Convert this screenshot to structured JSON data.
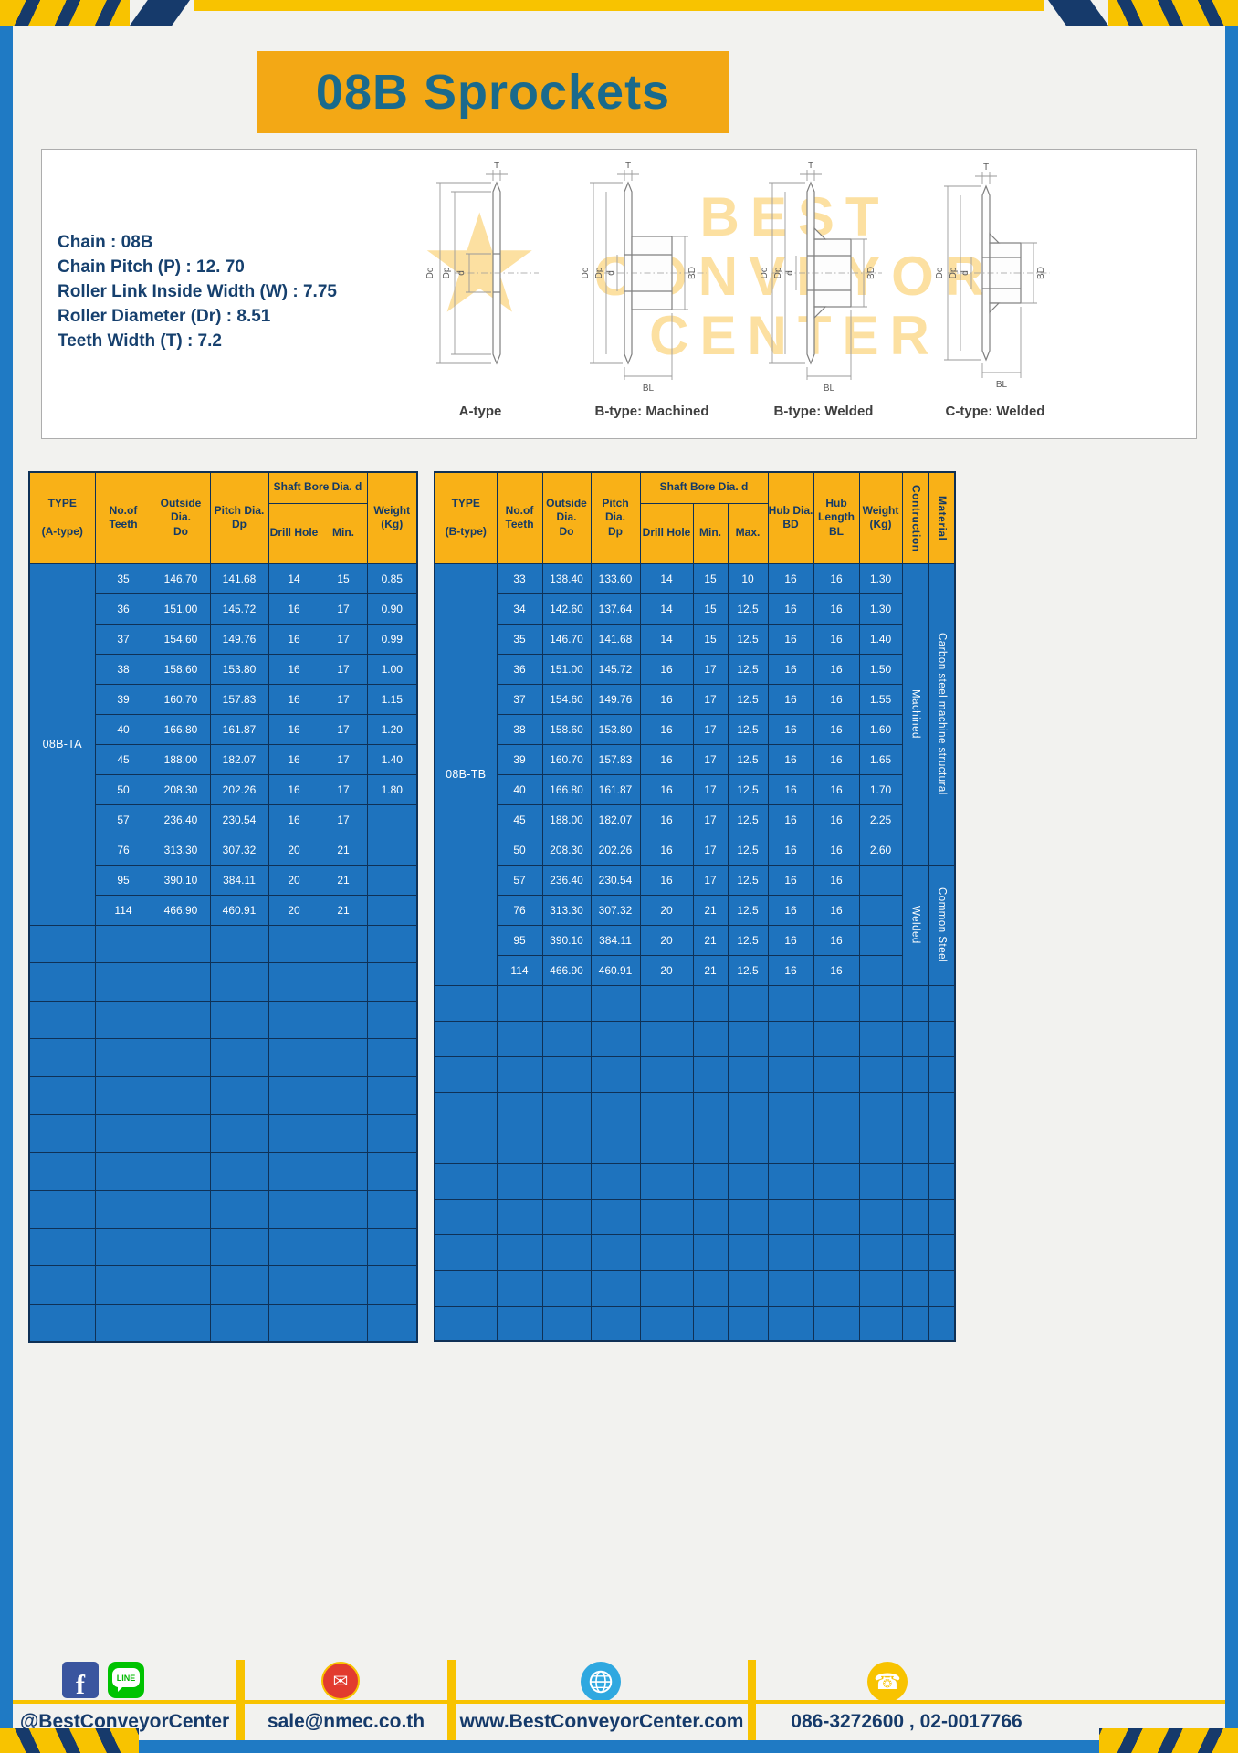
{
  "title": "08B Sprockets",
  "colors": {
    "frame_blue": "#1F7AC4",
    "table_body_blue": "#1E73BE",
    "table_header_gold": "#F9B117",
    "banner_gold": "#F3A815",
    "navy": "#143A66",
    "stripe_yellow": "#F8C300"
  },
  "specs": {
    "lines": [
      "Chain  :  08B",
      "Chain Pitch (P)  :  12. 70",
      "Roller Link Inside Width (W)  :  7.75",
      "Roller Diameter (Dr)  :  8.51",
      "Teeth Width (T)  :  7.2"
    ]
  },
  "diagrams": {
    "watermark": [
      "BEST",
      "CONVEYOR",
      "CENTER"
    ],
    "watermark_star": "★",
    "labels": {
      "t": "T",
      "outer": "Do",
      "pitch": "Dp",
      "bore": "d",
      "hub_dia": "BD",
      "hub_len": "BL"
    },
    "captions": [
      "A-type",
      "B-type: Machined",
      "B-type: Welded",
      "C-type: Welded"
    ]
  },
  "table_a": {
    "headers": {
      "type": "TYPE\n\n(A-type)",
      "teeth": "No.of\nTeeth",
      "outside": "Outside\nDia.\nDo",
      "pitch": "Pitch Dia.\nDp",
      "shaft_group": "Shaft Bore Dia. d",
      "drill": "Drill Hole",
      "min": "Min.",
      "weight": "Weight\n(Kg)"
    },
    "type_value": "08B-TA",
    "rows": [
      [
        "35",
        "146.70",
        "141.68",
        "14",
        "15",
        "0.85"
      ],
      [
        "36",
        "151.00",
        "145.72",
        "16",
        "17",
        "0.90"
      ],
      [
        "37",
        "154.60",
        "149.76",
        "16",
        "17",
        "0.99"
      ],
      [
        "38",
        "158.60",
        "153.80",
        "16",
        "17",
        "1.00"
      ],
      [
        "39",
        "160.70",
        "157.83",
        "16",
        "17",
        "1.15"
      ],
      [
        "40",
        "166.80",
        "161.87",
        "16",
        "17",
        "1.20"
      ],
      [
        "45",
        "188.00",
        "182.07",
        "16",
        "17",
        "1.40"
      ],
      [
        "50",
        "208.30",
        "202.26",
        "16",
        "17",
        "1.80"
      ],
      [
        "57",
        "236.40",
        "230.54",
        "16",
        "17",
        ""
      ],
      [
        "76",
        "313.30",
        "307.32",
        "20",
        "21",
        ""
      ],
      [
        "95",
        "390.10",
        "384.11",
        "20",
        "21",
        ""
      ],
      [
        "114",
        "466.90",
        "460.91",
        "20",
        "21",
        ""
      ]
    ],
    "empty_rows": 11
  },
  "table_b": {
    "headers": {
      "type": "TYPE\n\n(B-type)",
      "teeth": "No.of\nTeeth",
      "outside": "Outside\nDia.\nDo",
      "pitch": "Pitch Dia.\nDp",
      "shaft_group": "Shaft Bore Dia. d",
      "drill": "Drill Hole",
      "min": "Min.",
      "max": "Max.",
      "hub_dia": "Hub Dia.\nBD",
      "hub_len": "Hub\nLength\nBL",
      "weight": "Weight\n(Kg)",
      "construction": "Contruction",
      "material": "Material"
    },
    "type_value": "08B-TB",
    "rows": [
      [
        "33",
        "138.40",
        "133.60",
        "14",
        "15",
        "10",
        "16",
        "16",
        "1.30"
      ],
      [
        "34",
        "142.60",
        "137.64",
        "14",
        "15",
        "12.5",
        "16",
        "16",
        "1.30"
      ],
      [
        "35",
        "146.70",
        "141.68",
        "14",
        "15",
        "12.5",
        "16",
        "16",
        "1.40"
      ],
      [
        "36",
        "151.00",
        "145.72",
        "16",
        "17",
        "12.5",
        "16",
        "16",
        "1.50"
      ],
      [
        "37",
        "154.60",
        "149.76",
        "16",
        "17",
        "12.5",
        "16",
        "16",
        "1.55"
      ],
      [
        "38",
        "158.60",
        "153.80",
        "16",
        "17",
        "12.5",
        "16",
        "16",
        "1.60"
      ],
      [
        "39",
        "160.70",
        "157.83",
        "16",
        "17",
        "12.5",
        "16",
        "16",
        "1.65"
      ],
      [
        "40",
        "166.80",
        "161.87",
        "16",
        "17",
        "12.5",
        "16",
        "16",
        "1.70"
      ],
      [
        "45",
        "188.00",
        "182.07",
        "16",
        "17",
        "12.5",
        "16",
        "16",
        "2.25"
      ],
      [
        "50",
        "208.30",
        "202.26",
        "16",
        "17",
        "12.5",
        "16",
        "16",
        "2.60"
      ],
      [
        "57",
        "236.40",
        "230.54",
        "16",
        "17",
        "12.5",
        "16",
        "16",
        ""
      ],
      [
        "76",
        "313.30",
        "307.32",
        "20",
        "21",
        "12.5",
        "16",
        "16",
        ""
      ],
      [
        "95",
        "390.10",
        "384.11",
        "20",
        "21",
        "12.5",
        "16",
        "16",
        ""
      ],
      [
        "114",
        "466.90",
        "460.91",
        "20",
        "21",
        "12.5",
        "16",
        "16",
        ""
      ]
    ],
    "construction_spans": [
      {
        "label": "Machined",
        "rows": 10
      },
      {
        "label": "Welded",
        "rows": 4
      }
    ],
    "material_spans": [
      {
        "label": "Carbon steel  machine structural",
        "rows": 10
      },
      {
        "label": "Common  Steel",
        "rows": 4
      }
    ],
    "empty_rows": 10
  },
  "footer": {
    "handle": "@BestConveyorCenter",
    "email": "sale@nmec.co.th",
    "website": "www.BestConveyorCenter.com",
    "phone": "086-3272600 , 02-0017766",
    "icons": {
      "facebook": "f",
      "line_label": "LINE",
      "mail": "✉",
      "phone_glyph": "☎"
    }
  }
}
